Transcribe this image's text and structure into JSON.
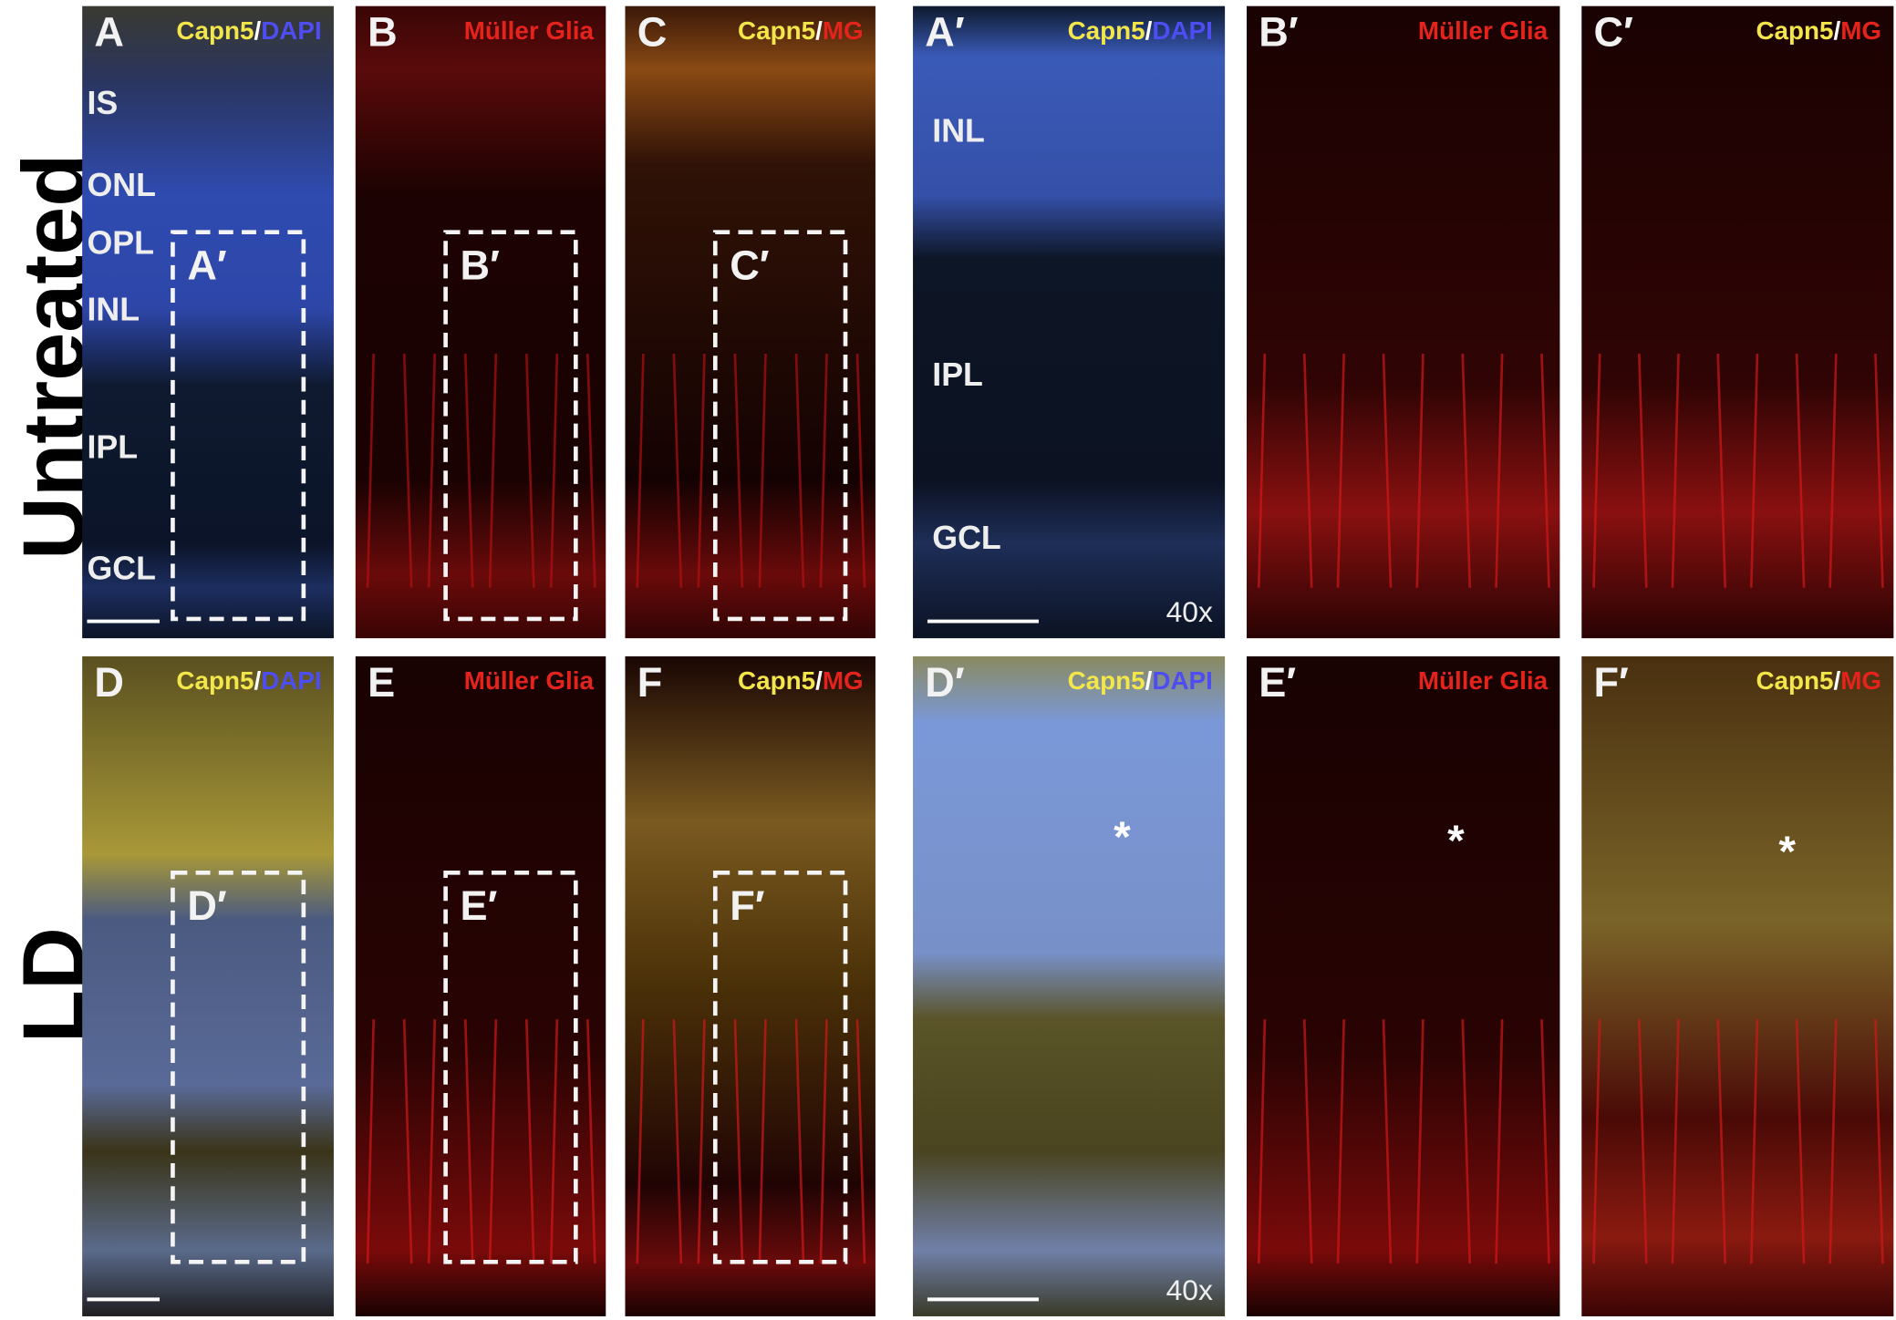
{
  "rows": [
    {
      "label": "Untreated",
      "panels": [
        {
          "letter": "A",
          "channel": [
            {
              "text": "Capn5",
              "color": "#f2e64a"
            },
            {
              "text": "/",
              "color": "#ffffff"
            },
            {
              "text": "DAPI",
              "color": "#4d4df2"
            }
          ],
          "layers": [
            "IS",
            "ONL",
            "OPL",
            "INL",
            "IPL",
            "GCL"
          ],
          "box": "A′"
        },
        {
          "letter": "B",
          "channel": [
            {
              "text": "Müller Glia",
              "color": "#e3231c"
            }
          ],
          "box": "B′"
        },
        {
          "letter": "C",
          "channel": [
            {
              "text": "Capn5",
              "color": "#f2e64a"
            },
            {
              "text": "/",
              "color": "#ffffff"
            },
            {
              "text": "MG",
              "color": "#e3231c"
            }
          ],
          "box": "C′"
        },
        {
          "letter": "A′",
          "channel": [
            {
              "text": "Capn5",
              "color": "#f2e64a"
            },
            {
              "text": "/",
              "color": "#ffffff"
            },
            {
              "text": "DAPI",
              "color": "#4d4df2"
            }
          ],
          "layers": [
            "INL",
            "IPL",
            "GCL"
          ],
          "magnification": "40x"
        },
        {
          "letter": "B′",
          "channel": [
            {
              "text": "Müller Glia",
              "color": "#e3231c"
            }
          ]
        },
        {
          "letter": "C′",
          "channel": [
            {
              "text": "Capn5",
              "color": "#f2e64a"
            },
            {
              "text": "/",
              "color": "#ffffff"
            },
            {
              "text": "MG",
              "color": "#e3231c"
            }
          ]
        }
      ]
    },
    {
      "label": "LD",
      "panels": [
        {
          "letter": "D",
          "channel": [
            {
              "text": "Capn5",
              "color": "#f2e64a"
            },
            {
              "text": "/",
              "color": "#ffffff"
            },
            {
              "text": "DAPI",
              "color": "#4d4df2"
            }
          ],
          "box": "D′"
        },
        {
          "letter": "E",
          "channel": [
            {
              "text": "Müller Glia",
              "color": "#e3231c"
            }
          ],
          "box": "E′"
        },
        {
          "letter": "F",
          "channel": [
            {
              "text": "Capn5",
              "color": "#f2e64a"
            },
            {
              "text": "/",
              "color": "#ffffff"
            },
            {
              "text": "MG",
              "color": "#e3231c"
            }
          ],
          "box": "F′"
        },
        {
          "letter": "D′",
          "channel": [
            {
              "text": "Capn5",
              "color": "#f2e64a"
            },
            {
              "text": "/",
              "color": "#ffffff"
            },
            {
              "text": "DAPI",
              "color": "#4d4df2"
            }
          ],
          "marker": "*",
          "magnification": "40x"
        },
        {
          "letter": "E′",
          "channel": [
            {
              "text": "Müller Glia",
              "color": "#e3231c"
            }
          ],
          "marker": "*"
        },
        {
          "letter": "F′",
          "channel": [
            {
              "text": "Capn5",
              "color": "#f2e64a"
            },
            {
              "text": "/",
              "color": "#ffffff"
            },
            {
              "text": "MG",
              "color": "#e3231c"
            }
          ],
          "marker": "*"
        }
      ]
    }
  ]
}
